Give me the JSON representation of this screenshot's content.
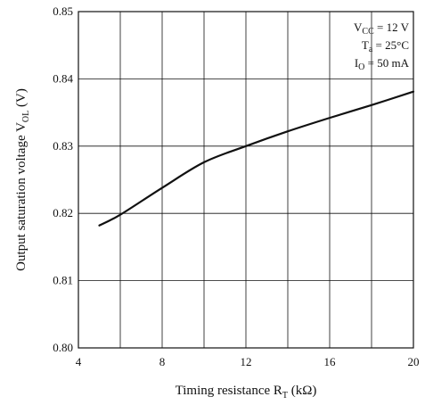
{
  "chart_data": {
    "type": "line",
    "xlabel": {
      "main": "Timing resistance  R",
      "sub": "T",
      "unit": "  (kΩ)"
    },
    "ylabel": {
      "main": "Output saturation voltage  V",
      "sub": "OL",
      "unit": "  (V)"
    },
    "xlim": [
      4,
      20
    ],
    "ylim": [
      0.8,
      0.85
    ],
    "x_ticks": [
      4,
      8,
      12,
      16,
      20
    ],
    "x_tick_labels": [
      "4",
      "8",
      "12",
      "16",
      "20"
    ],
    "x_minor_grid": [
      6,
      10,
      14,
      18
    ],
    "y_ticks": [
      0.8,
      0.81,
      0.82,
      0.83,
      0.84,
      0.85
    ],
    "y_tick_labels": [
      "0.80",
      "0.81",
      "0.82",
      "0.83",
      "0.84",
      "0.85"
    ],
    "grid": true,
    "conditions": [
      {
        "main": "V",
        "sub": "CC",
        "rest": " = 12 V"
      },
      {
        "main": "T",
        "sub": "a",
        "rest": " = 25°C"
      },
      {
        "main": "I",
        "sub": "O",
        "rest": " = 50 mA"
      }
    ],
    "legend_placement": "top-right",
    "series": [
      {
        "color": "#111111",
        "x": [
          5,
          6,
          8,
          10,
          12,
          14,
          16,
          18,
          20
        ],
        "y": [
          0.8182,
          0.8198,
          0.8238,
          0.8276,
          0.83,
          0.8322,
          0.8342,
          0.8361,
          0.8381
        ]
      }
    ]
  }
}
